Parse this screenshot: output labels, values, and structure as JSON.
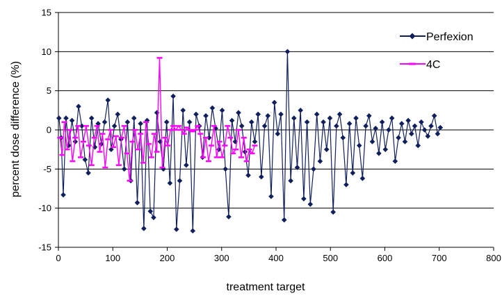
{
  "chart_data": {
    "type": "line",
    "title": "",
    "xlabel": "treatment target",
    "ylabel": "percent dose difference (%)",
    "xlim": [
      0,
      800
    ],
    "ylim": [
      -15,
      15
    ],
    "x_ticks": [
      0,
      100,
      200,
      300,
      400,
      500,
      600,
      700,
      800
    ],
    "y_ticks": [
      -15,
      -10,
      -5,
      0,
      5,
      10,
      15
    ],
    "x_tick_labels": [
      "0",
      "100",
      "200",
      "300",
      "400",
      "500",
      "600",
      "700",
      "800"
    ],
    "y_tick_labels": [
      "-15",
      "-10",
      "-5",
      "0",
      "5",
      "10",
      "15"
    ],
    "grid": "horizontal",
    "legend_position": "top-right",
    "series": [
      {
        "name": "Perfexion",
        "color": "#0f1f5c",
        "marker": "diamond",
        "x": [
          1,
          5,
          9,
          14,
          19,
          25,
          31,
          37,
          43,
          49,
          55,
          61,
          67,
          73,
          79,
          85,
          91,
          97,
          103,
          109,
          115,
          121,
          127,
          133,
          139,
          145,
          151,
          157,
          163,
          169,
          175,
          181,
          187,
          193,
          199,
          205,
          211,
          217,
          223,
          229,
          235,
          241,
          247,
          253,
          259,
          265,
          271,
          277,
          283,
          289,
          295,
          301,
          307,
          313,
          319,
          325,
          331,
          337,
          343,
          349,
          355,
          361,
          367,
          373,
          379,
          385,
          391,
          397,
          403,
          409,
          415,
          421,
          427,
          433,
          439,
          445,
          451,
          457,
          463,
          469,
          475,
          481,
          487,
          493,
          499,
          505,
          511,
          517,
          523,
          529,
          535,
          541,
          547,
          553,
          559,
          565,
          571,
          577,
          583,
          589,
          595,
          601,
          607,
          613,
          619,
          625,
          631,
          637,
          643,
          649,
          655,
          661,
          667,
          673,
          679,
          685,
          691,
          697,
          702
        ],
        "y": [
          1.5,
          -1.0,
          -8.3,
          1.5,
          -2.0,
          1.2,
          -1.5,
          3.0,
          0.5,
          -3.8,
          -5.5,
          1.5,
          -2.2,
          0.8,
          -1.8,
          1.0,
          3.8,
          -2.5,
          0.5,
          2.0,
          -1.2,
          -5.0,
          1.0,
          -6.5,
          1.5,
          -9.3,
          0.8,
          -12.6,
          1.2,
          -10.4,
          -11.2,
          2.2,
          -1.5,
          -5.0,
          1.0,
          -6.8,
          4.3,
          -12.7,
          -6.5,
          2.5,
          -4.5,
          1.0,
          -12.9,
          2.0,
          0.5,
          -3.5,
          1.8,
          -1.0,
          2.8,
          0.2,
          -2.5,
          2.5,
          -5.0,
          -11.1,
          1.2,
          -1.5,
          2.2,
          0.5,
          -2.8,
          -5.8,
          1.0,
          -1.5,
          2.0,
          -6.0,
          0.5,
          1.8,
          -8.5,
          3.5,
          -0.5,
          2.0,
          -11.5,
          10.0,
          -6.5,
          1.5,
          -4.8,
          2.5,
          -8.8,
          1.0,
          -9.5,
          -5.0,
          2.0,
          -4.0,
          1.0,
          -2.5,
          1.5,
          -10.5,
          0.5,
          2.0,
          -1.0,
          -7.0,
          0.8,
          -5.5,
          1.5,
          -2.0,
          -6.2,
          0.5,
          1.8,
          -1.5,
          0.2,
          -3.0,
          1.0,
          -2.5,
          0.0,
          1.5,
          -4.0,
          -1.0,
          0.8,
          -1.5,
          1.2,
          -0.5,
          0.5,
          -2.0,
          1.0,
          0.0,
          -0.8,
          0.5,
          1.8,
          -0.5,
          0.3
        ]
      },
      {
        "name": "4C",
        "color": "#ff00ff",
        "marker": "dash",
        "x": [
          3,
          7,
          11,
          16,
          21,
          26,
          31,
          36,
          41,
          46,
          51,
          56,
          61,
          66,
          71,
          76,
          81,
          86,
          91,
          96,
          101,
          106,
          111,
          116,
          121,
          126,
          131,
          136,
          141,
          146,
          151,
          156,
          161,
          166,
          171,
          176,
          181,
          186,
          191,
          196,
          201,
          206,
          211,
          216,
          221,
          226,
          231,
          236,
          241,
          246,
          251,
          256,
          261,
          266,
          271,
          276,
          281,
          286,
          291,
          296,
          301,
          306,
          311,
          316,
          321,
          326,
          331,
          336,
          341,
          346,
          351,
          356,
          361
        ],
        "y": [
          -1.0,
          -3.2,
          1.0,
          -2.5,
          0.0,
          -4.0,
          -1.0,
          0.5,
          -3.5,
          -1.5,
          0.5,
          -2.0,
          -4.5,
          -1.0,
          0.5,
          -2.8,
          -0.5,
          -4.8,
          -1.2,
          0.0,
          -2.2,
          -0.8,
          -4.5,
          -1.0,
          0.5,
          -3.0,
          -6.5,
          -1.5,
          0.0,
          -2.5,
          -0.5,
          -4.2,
          1.0,
          -1.8,
          -3.5,
          -0.5,
          -2.8,
          9.2,
          -4.8,
          -1.0,
          -2.0,
          0.0,
          0.5,
          0.0,
          0.5,
          0.0,
          -0.5,
          0.3,
          0.0,
          -0.2,
          0.0,
          0.5,
          -0.5,
          -3.5,
          -1.0,
          -4.0,
          -2.0,
          0.5,
          -3.5,
          -1.5,
          -3.5,
          -2.0,
          0.5,
          -1.0,
          -3.0,
          -2.5,
          0.0,
          -3.5,
          -1.0,
          -4.0,
          -2.5,
          -3.0,
          -2.0
        ]
      }
    ]
  }
}
